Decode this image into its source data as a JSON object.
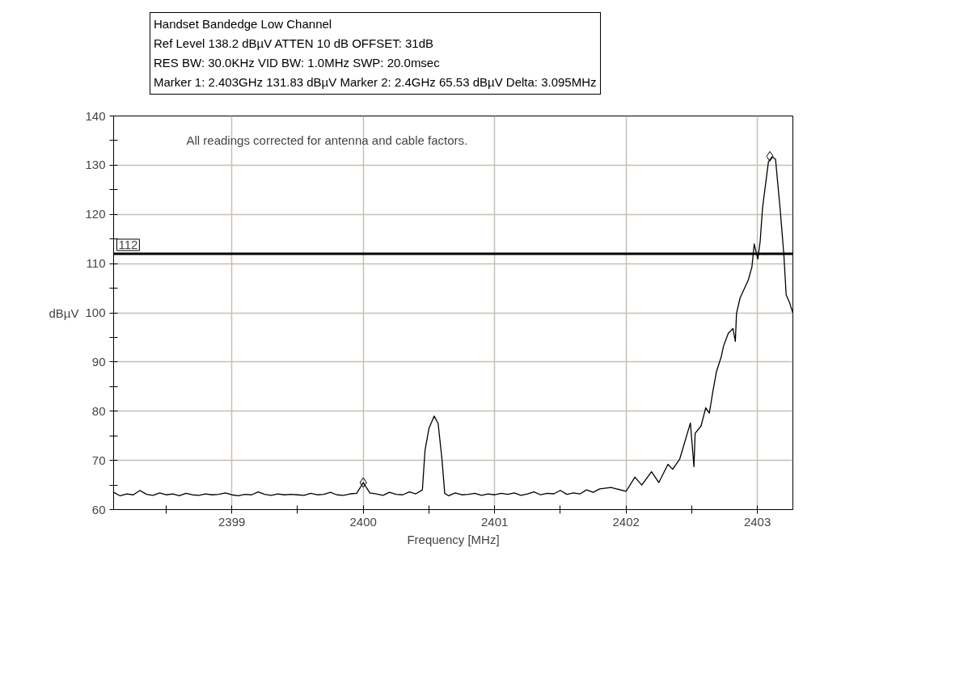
{
  "chart_data": {
    "type": "line",
    "title": "Handset Bandedge Low Channel",
    "subtitle": "Ref Level 138.2 dBµV    ATTEN 10 dB    OFFSET: 31dB\nRES BW: 30.0KHz  VID BW: 1.0MHz  SWP: 20.0msec\nMarker 1: 2.403GHz  131.83 dBµV    Marker 2: 2.4GHz  65.53 dBµV Delta: 3.095MHz",
    "xlabel": "Frequency [MHz]",
    "ylabel": "dBµV",
    "annotations": [
      "All readings corrected for antenna and cable factors."
    ],
    "series": [
      {
        "color": "#000000",
        "x": [
          2398.1,
          2398.15,
          2398.2,
          2398.25,
          2398.3,
          2398.35,
          2398.4,
          2398.45,
          2398.5,
          2398.55,
          2398.6,
          2398.65,
          2398.7,
          2398.75,
          2398.8,
          2398.85,
          2398.9,
          2398.95,
          2399.0,
          2399.05,
          2399.1,
          2399.15,
          2399.2,
          2399.25,
          2399.3,
          2399.35,
          2399.4,
          2399.45,
          2399.5,
          2399.55,
          2399.6,
          2399.65,
          2399.7,
          2399.75,
          2399.8,
          2399.85,
          2399.9,
          2399.95,
          2400.0,
          2400.05,
          2400.1,
          2400.15,
          2400.2,
          2400.25,
          2400.3,
          2400.35,
          2400.4,
          2400.45,
          2400.47,
          2400.5,
          2400.54,
          2400.57,
          2400.6,
          2400.62,
          2400.65,
          2400.7,
          2400.75,
          2400.8,
          2400.85,
          2400.9,
          2400.95,
          2401.0,
          2401.05,
          2401.1,
          2401.15,
          2401.2,
          2401.25,
          2401.3,
          2401.35,
          2401.4,
          2401.45,
          2401.5,
          2401.55,
          2401.6,
          2401.65,
          2401.7,
          2401.75,
          2401.8,
          2401.886,
          2402.0,
          2402.068,
          2402.12,
          2402.194,
          2402.25,
          2402.319,
          2402.355,
          2402.409,
          2402.49,
          2402.517,
          2402.526,
          2402.571,
          2402.607,
          2402.634,
          2402.661,
          2402.688,
          2402.724,
          2402.742,
          2402.778,
          2402.814,
          2402.832,
          2402.841,
          2402.868,
          2402.931,
          2402.958,
          2402.976,
          2403.003,
          2403.021,
          2403.039,
          2403.084,
          2403.111,
          2403.138,
          2403.174,
          2403.201,
          2403.219,
          2403.246,
          2403.27
        ],
        "values": [
          63.5,
          62.8,
          63.2,
          63.0,
          63.9,
          63.1,
          62.9,
          63.4,
          63.0,
          63.2,
          62.8,
          63.3,
          63.0,
          62.9,
          63.2,
          63.0,
          63.1,
          63.4,
          63.0,
          62.8,
          63.1,
          63.0,
          63.6,
          63.1,
          62.9,
          63.2,
          63.0,
          63.1,
          63.0,
          62.9,
          63.3,
          63.0,
          63.1,
          63.5,
          63.0,
          62.9,
          63.2,
          63.3,
          65.5,
          63.4,
          63.2,
          62.9,
          63.5,
          63.1,
          63.0,
          63.6,
          63.2,
          64.0,
          72.0,
          76.5,
          79.0,
          77.5,
          70.0,
          63.3,
          62.8,
          63.4,
          63.0,
          63.1,
          63.3,
          62.9,
          63.2,
          63.0,
          63.3,
          63.1,
          63.4,
          62.9,
          63.2,
          63.6,
          63.0,
          63.3,
          63.2,
          63.9,
          63.1,
          63.4,
          63.2,
          64.0,
          63.5,
          64.2,
          64.5,
          63.7,
          66.6,
          65.0,
          67.7,
          65.5,
          69.2,
          68.2,
          70.3,
          77.6,
          68.7,
          75.5,
          77.0,
          80.7,
          79.6,
          84.0,
          88.0,
          91.0,
          93.2,
          95.8,
          96.8,
          94.2,
          99.9,
          103.0,
          106.7,
          109.3,
          114.0,
          110.9,
          114.5,
          121.3,
          130.7,
          131.7,
          131.2,
          120.8,
          111.9,
          103.6,
          102.0,
          99.9
        ]
      },
      {
        "type": "scatter",
        "color": "#000000",
        "marker": "diamond",
        "x": [
          2403.095,
          2400.0
        ],
        "values": [
          131.8,
          65.5
        ]
      }
    ],
    "xlim": [
      2398.1,
      2403.27
    ],
    "ylim": [
      60,
      140
    ],
    "xticks": [
      {
        "value": 2398.5,
        "label": null
      },
      2399,
      {
        "value": 2399.5,
        "label": null
      },
      2400,
      {
        "value": 2400.5,
        "label": null
      },
      2401,
      {
        "value": 2401.5,
        "label": null
      },
      2402,
      {
        "value": 2402.5,
        "label": null
      },
      2403
    ],
    "yticks": [
      60,
      {
        "value": 65,
        "label": null
      },
      70,
      {
        "value": 75,
        "label": null
      },
      80,
      {
        "value": 85,
        "label": null
      },
      90,
      {
        "value": 95,
        "label": null
      },
      100,
      {
        "value": 105,
        "label": null
      },
      110,
      {
        "value": 115,
        "label": null
      },
      120,
      {
        "value": 125,
        "label": null
      },
      130,
      {
        "value": 135,
        "label": null
      },
      140
    ],
    "ref_lines": [
      {
        "axis": "y",
        "value": 112,
        "label": "112",
        "color": "#000000"
      }
    ],
    "grid": true,
    "line_style": "solid"
  }
}
